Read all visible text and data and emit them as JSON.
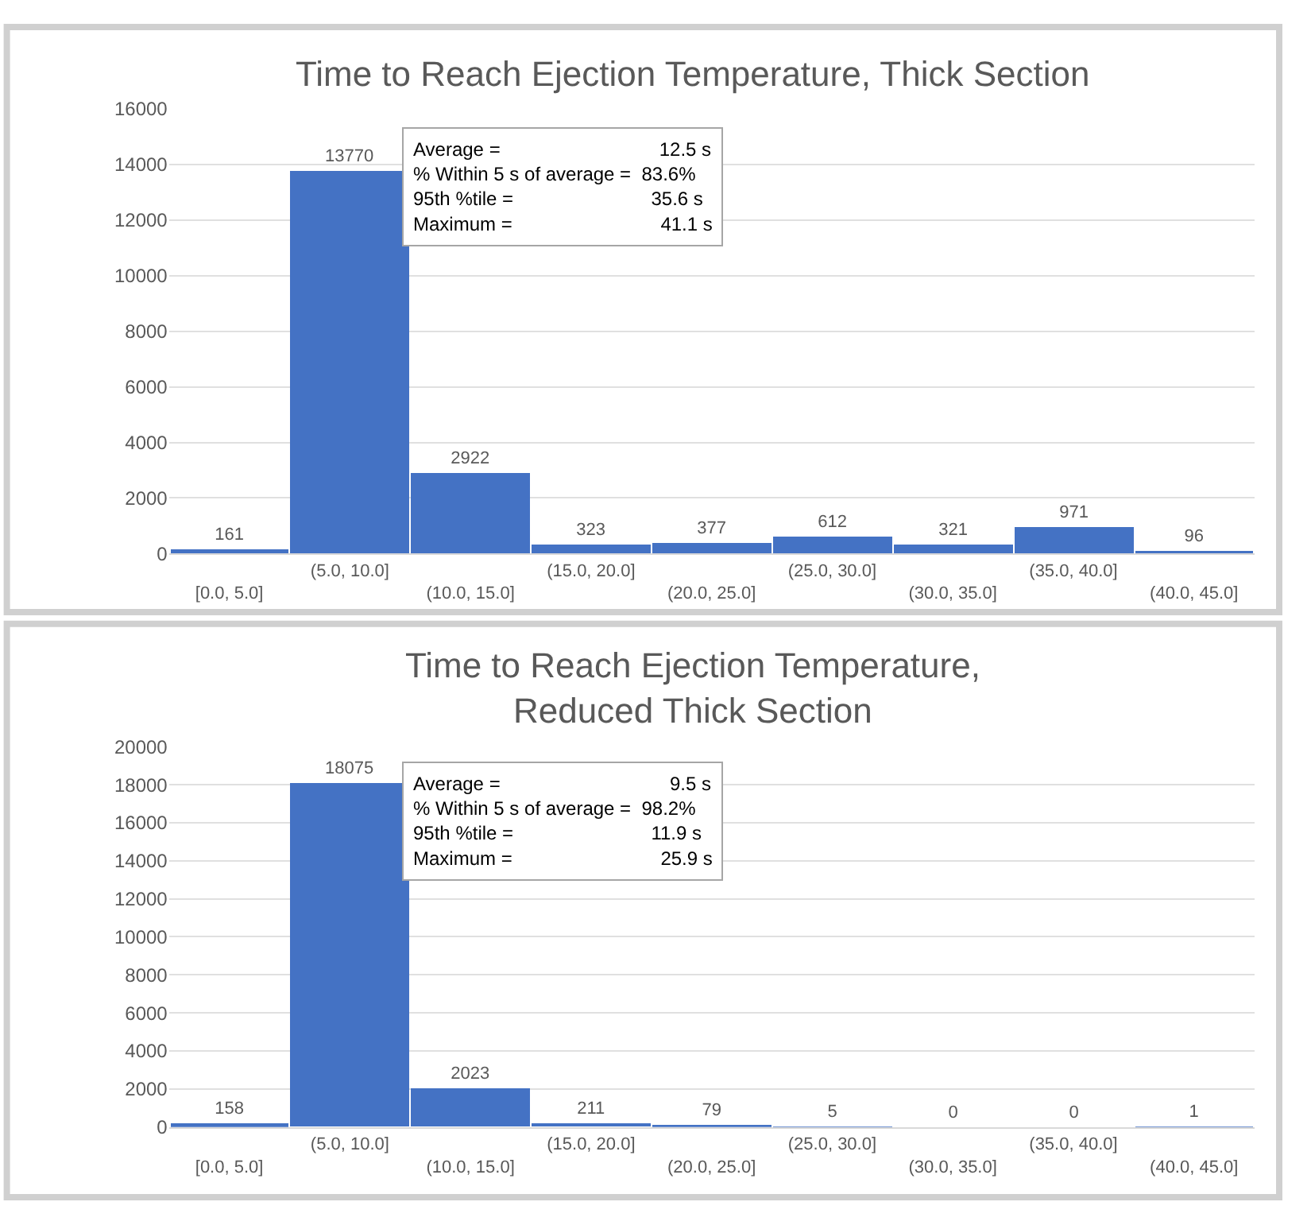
{
  "chart_data": [
    {
      "type": "bar",
      "title": "Time to Reach Ejection Temperature, Thick Section",
      "categories": [
        "[0.0, 5.0]",
        "(5.0, 10.0]",
        "(10.0, 15.0]",
        "(15.0, 20.0]",
        "(20.0, 25.0]",
        "(25.0, 30.0]",
        "(30.0, 35.0]",
        "(35.0, 40.0]",
        "(40.0, 45.0]"
      ],
      "values": [
        161,
        13770,
        2922,
        323,
        377,
        612,
        321,
        971,
        96
      ],
      "color": "#4472c4",
      "ylim": [
        0,
        16000
      ],
      "yticks": [
        0,
        2000,
        4000,
        6000,
        8000,
        10000,
        12000,
        14000,
        16000
      ],
      "grid": "y",
      "data_labels": true,
      "annotations": [
        "Average =                              12.5 s",
        "% Within 5 s of average =  83.6%",
        "95th %tile =                          35.6 s",
        "Maximum =                            41.1 s"
      ]
    },
    {
      "type": "bar",
      "title": "Time to Reach Ejection Temperature,\nReduced Thick Section",
      "categories": [
        "[0.0, 5.0]",
        "(5.0, 10.0]",
        "(10.0, 15.0]",
        "(15.0, 20.0]",
        "(20.0, 25.0]",
        "(25.0, 30.0]",
        "(30.0, 35.0]",
        "(35.0, 40.0]",
        "(40.0, 45.0]"
      ],
      "values": [
        158,
        18075,
        2023,
        211,
        79,
        5,
        0,
        0,
        1
      ],
      "color": "#4472c4",
      "ylim": [
        0,
        20000
      ],
      "yticks": [
        0,
        2000,
        4000,
        6000,
        8000,
        10000,
        12000,
        14000,
        16000,
        18000,
        20000
      ],
      "grid": "y",
      "data_labels": true,
      "annotations": [
        "Average =                                9.5 s",
        "% Within 5 s of average =  98.2%",
        "95th %tile =                          11.9 s",
        "Maximum =                            25.9 s"
      ]
    }
  ]
}
